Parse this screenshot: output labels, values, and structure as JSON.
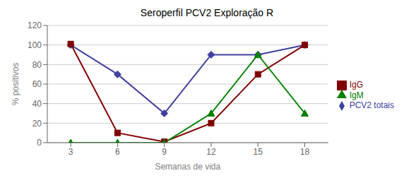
{
  "chart_data": {
    "type": "line",
    "title": "Seroperfil PCV2 Exploração R",
    "xlabel": "Semanas de vida",
    "ylabel": "% positivos",
    "x": [
      3,
      6,
      9,
      12,
      15,
      18
    ],
    "series": [
      {
        "name": "PCV2 totais",
        "color": "#4040A0",
        "marker": "diamond",
        "values": [
          100,
          70,
          30,
          90,
          90,
          100
        ]
      },
      {
        "name": "IgG",
        "color": "#800000",
        "marker": "square",
        "values": [
          101,
          10,
          1,
          20,
          70,
          100
        ]
      },
      {
        "name": "IgM",
        "color": "#008000",
        "marker": "triangle",
        "values": [
          0,
          0,
          0,
          30,
          90,
          30
        ]
      }
    ],
    "xlim": [
      1.5,
      19.5
    ],
    "xticks": [
      3,
      6,
      9,
      12,
      15,
      18
    ],
    "ylim": [
      0,
      120
    ],
    "yticks": [
      0,
      20,
      40,
      60,
      80,
      100,
      120
    ],
    "grid": "y",
    "legend": "right"
  }
}
